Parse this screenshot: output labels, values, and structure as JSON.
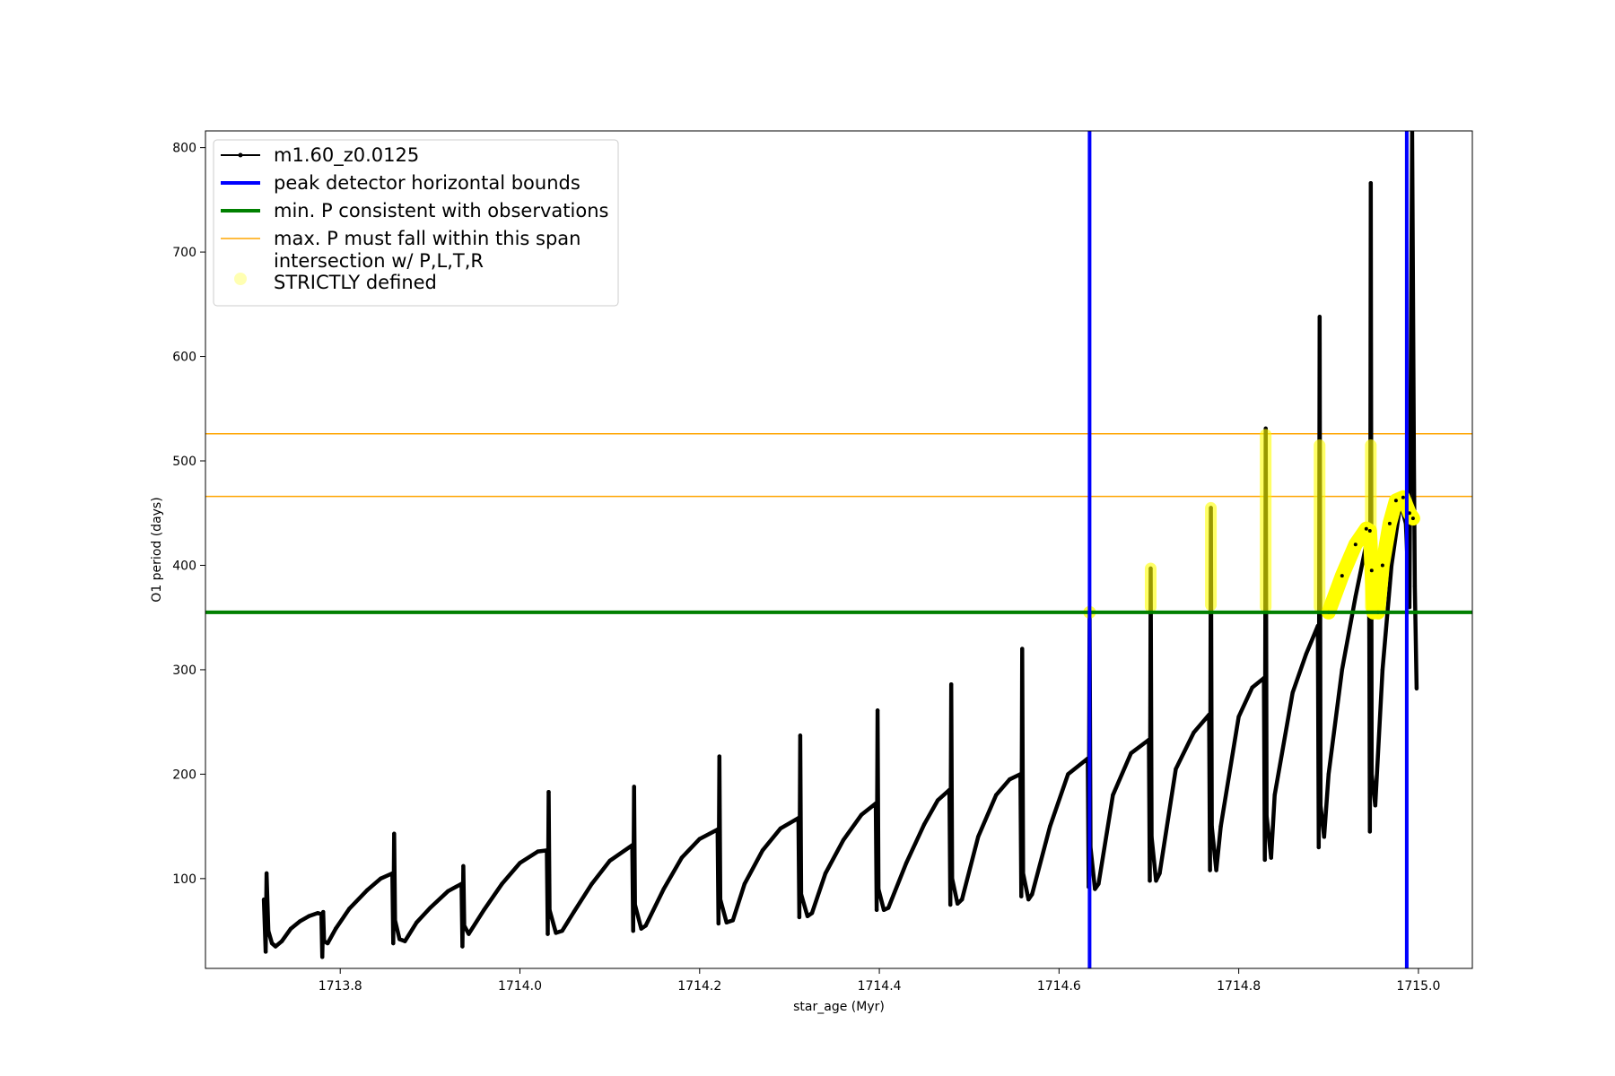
{
  "chart_data": {
    "type": "line",
    "title": "",
    "xlabel": "star_age (Myr)",
    "ylabel": "O1 period (days)",
    "xlim": [
      1713.65,
      1715.06
    ],
    "ylim": [
      14,
      816
    ],
    "xticks": [
      1713.8,
      1714.0,
      1714.2,
      1714.4,
      1714.6,
      1714.8,
      1715.0
    ],
    "xtick_labels": [
      "1713.8",
      "1714.0",
      "1714.2",
      "1714.4",
      "1714.6",
      "1714.8",
      "1715.0"
    ],
    "yticks": [
      100,
      200,
      300,
      400,
      500,
      600,
      700,
      800
    ],
    "ytick_labels": [
      "100",
      "200",
      "300",
      "400",
      "500",
      "600",
      "700",
      "800"
    ],
    "grid": false,
    "legend_position": "top-left",
    "colors": {
      "model": "#000000",
      "bounds": "#0000ff",
      "min_p": "#008000",
      "max_p": "#ffa500",
      "intersection": "#ffff00"
    },
    "legend": [
      {
        "key": "model",
        "label": "m1.60_z0.0125",
        "style": "line-marker"
      },
      {
        "key": "bounds",
        "label": "peak detector horizontal bounds",
        "style": "thick-line"
      },
      {
        "key": "min_p",
        "label": "min. P consistent with observations",
        "style": "thick-line"
      },
      {
        "key": "max_p",
        "label": "max. P must fall within this span",
        "style": "thin-line"
      },
      {
        "key": "intersection",
        "label": [
          "intersection w/ P,L,T,R",
          "STRICTLY defined"
        ],
        "style": "dot"
      }
    ],
    "series": [
      {
        "name": "m1.60_z0.0125",
        "color": "#000000",
        "points": [
          [
            1713.715,
            80
          ],
          [
            1713.717,
            30
          ],
          [
            1713.718,
            105
          ],
          [
            1713.72,
            50
          ],
          [
            1713.724,
            38
          ],
          [
            1713.728,
            35
          ],
          [
            1713.735,
            40
          ],
          [
            1713.745,
            52
          ],
          [
            1713.755,
            59
          ],
          [
            1713.765,
            64
          ],
          [
            1713.775,
            67
          ],
          [
            1713.779,
            66
          ],
          [
            1713.78,
            25
          ],
          [
            1713.781,
            68
          ],
          [
            1713.782,
            40
          ],
          [
            1713.786,
            38
          ],
          [
            1713.795,
            52
          ],
          [
            1713.81,
            71
          ],
          [
            1713.83,
            89
          ],
          [
            1713.845,
            100
          ],
          [
            1713.858,
            105
          ],
          [
            1713.859,
            38
          ],
          [
            1713.86,
            143
          ],
          [
            1713.861,
            60
          ],
          [
            1713.866,
            42
          ],
          [
            1713.872,
            40
          ],
          [
            1713.885,
            58
          ],
          [
            1713.9,
            72
          ],
          [
            1713.92,
            88
          ],
          [
            1713.935,
            95
          ],
          [
            1713.936,
            35
          ],
          [
            1713.937,
            112
          ],
          [
            1713.938,
            55
          ],
          [
            1713.943,
            47
          ],
          [
            1713.96,
            70
          ],
          [
            1713.98,
            95
          ],
          [
            1714.0,
            115
          ],
          [
            1714.02,
            126
          ],
          [
            1714.03,
            127
          ],
          [
            1714.031,
            47
          ],
          [
            1714.032,
            183
          ],
          [
            1714.033,
            70
          ],
          [
            1714.04,
            48
          ],
          [
            1714.047,
            50
          ],
          [
            1714.06,
            68
          ],
          [
            1714.08,
            95
          ],
          [
            1714.1,
            117
          ],
          [
            1714.125,
            132
          ],
          [
            1714.126,
            50
          ],
          [
            1714.127,
            188
          ],
          [
            1714.128,
            75
          ],
          [
            1714.135,
            52
          ],
          [
            1714.14,
            55
          ],
          [
            1714.16,
            90
          ],
          [
            1714.18,
            120
          ],
          [
            1714.2,
            138
          ],
          [
            1714.22,
            147
          ],
          [
            1714.221,
            57
          ],
          [
            1714.222,
            217
          ],
          [
            1714.223,
            80
          ],
          [
            1714.23,
            58
          ],
          [
            1714.237,
            60
          ],
          [
            1714.25,
            95
          ],
          [
            1714.27,
            127
          ],
          [
            1714.29,
            148
          ],
          [
            1714.31,
            158
          ],
          [
            1714.311,
            63
          ],
          [
            1714.312,
            237
          ],
          [
            1714.313,
            85
          ],
          [
            1714.32,
            64
          ],
          [
            1714.325,
            67
          ],
          [
            1714.34,
            105
          ],
          [
            1714.36,
            137
          ],
          [
            1714.38,
            161
          ],
          [
            1714.396,
            172
          ],
          [
            1714.397,
            70
          ],
          [
            1714.398,
            261
          ],
          [
            1714.399,
            90
          ],
          [
            1714.405,
            70
          ],
          [
            1714.41,
            72
          ],
          [
            1714.43,
            115
          ],
          [
            1714.45,
            152
          ],
          [
            1714.465,
            175
          ],
          [
            1714.478,
            185
          ],
          [
            1714.479,
            75
          ],
          [
            1714.48,
            286
          ],
          [
            1714.481,
            100
          ],
          [
            1714.487,
            76
          ],
          [
            1714.492,
            80
          ],
          [
            1714.51,
            140
          ],
          [
            1714.53,
            180
          ],
          [
            1714.545,
            195
          ],
          [
            1714.557,
            200
          ],
          [
            1714.558,
            83
          ],
          [
            1714.559,
            320
          ],
          [
            1714.56,
            105
          ],
          [
            1714.566,
            80
          ],
          [
            1714.57,
            85
          ],
          [
            1714.59,
            150
          ],
          [
            1714.61,
            200
          ],
          [
            1714.632,
            215
          ],
          [
            1714.633,
            92
          ],
          [
            1714.634,
            355
          ],
          [
            1714.635,
            130
          ],
          [
            1714.64,
            90
          ],
          [
            1714.644,
            95
          ],
          [
            1714.66,
            180
          ],
          [
            1714.68,
            220
          ],
          [
            1714.7,
            233
          ],
          [
            1714.701,
            98
          ],
          [
            1714.702,
            397
          ],
          [
            1714.703,
            140
          ],
          [
            1714.708,
            98
          ],
          [
            1714.712,
            105
          ],
          [
            1714.73,
            205
          ],
          [
            1714.75,
            240
          ],
          [
            1714.767,
            257
          ],
          [
            1714.768,
            108
          ],
          [
            1714.769,
            455
          ],
          [
            1714.77,
            150
          ],
          [
            1714.775,
            108
          ],
          [
            1714.78,
            150
          ],
          [
            1714.8,
            255
          ],
          [
            1714.815,
            283
          ],
          [
            1714.828,
            292
          ],
          [
            1714.829,
            118
          ],
          [
            1714.83,
            531
          ],
          [
            1714.831,
            160
          ],
          [
            1714.836,
            120
          ],
          [
            1714.84,
            180
          ],
          [
            1714.86,
            278
          ],
          [
            1714.875,
            315
          ],
          [
            1714.888,
            342
          ],
          [
            1714.889,
            130
          ],
          [
            1714.89,
            638
          ],
          [
            1714.891,
            170
          ],
          [
            1714.895,
            140
          ],
          [
            1714.9,
            200
          ],
          [
            1714.915,
            300
          ],
          [
            1714.93,
            370
          ],
          [
            1714.945,
            433
          ],
          [
            1714.946,
            145
          ],
          [
            1714.947,
            766
          ],
          [
            1714.948,
            200
          ],
          [
            1714.952,
            170
          ],
          [
            1714.96,
            300
          ],
          [
            1714.97,
            400
          ],
          [
            1714.98,
            460
          ],
          [
            1714.986,
            440
          ],
          [
            1714.99,
            360
          ],
          [
            1714.993,
            816
          ],
          [
            1714.995,
            500
          ],
          [
            1714.996,
            380
          ],
          [
            1714.998,
            282
          ]
        ]
      }
    ],
    "vertical_bounds": [
      1714.634,
      1714.987
    ],
    "min_p": 355,
    "max_p_span": [
      466,
      526
    ],
    "intersections": [
      {
        "x": 1714.634,
        "y": [
          355,
          357
        ]
      },
      {
        "x": 1714.702,
        "y": [
          360,
          397
        ]
      },
      {
        "x": 1714.769,
        "y": [
          362,
          455
        ]
      },
      {
        "x": 1714.83,
        "y": [
          360,
          525
        ]
      },
      {
        "x": 1714.89,
        "y": [
          360,
          515
        ]
      },
      {
        "x": 1714.947,
        "y": [
          360,
          515
        ]
      }
    ],
    "intersection_curves": [
      [
        [
          1714.9,
          355
        ],
        [
          1714.915,
          390
        ],
        [
          1714.93,
          420
        ],
        [
          1714.942,
          435
        ],
        [
          1714.946,
          433
        ],
        [
          1714.948,
          395
        ],
        [
          1714.95,
          355
        ]
      ],
      [
        [
          1714.955,
          355
        ],
        [
          1714.96,
          400
        ],
        [
          1714.968,
          440
        ],
        [
          1714.975,
          462
        ],
        [
          1714.983,
          465
        ],
        [
          1714.99,
          450
        ],
        [
          1714.994,
          445
        ]
      ]
    ]
  }
}
